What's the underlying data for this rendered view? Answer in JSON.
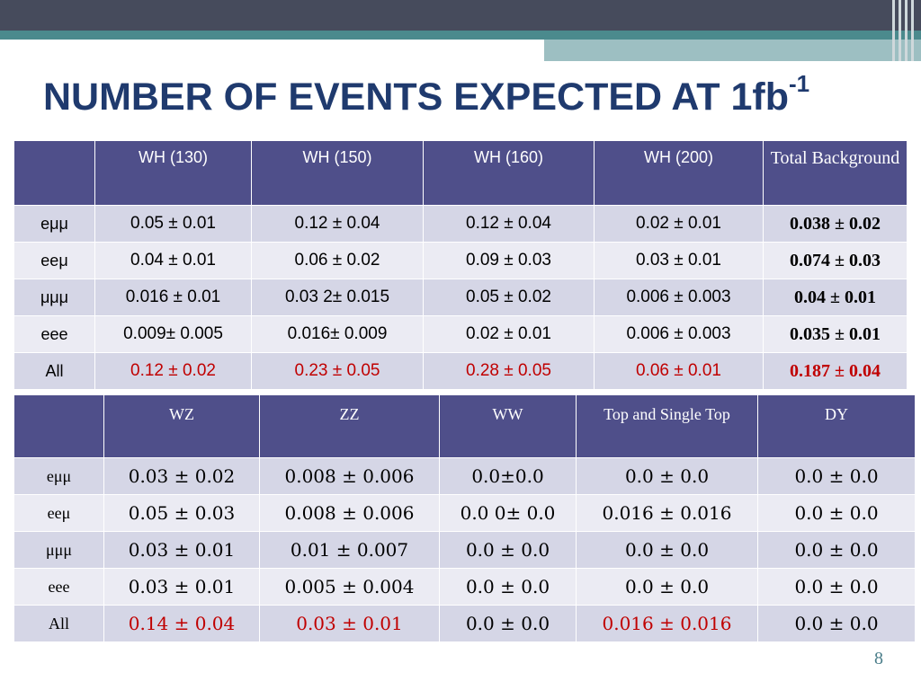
{
  "slide": {
    "title": "NUMBER OF EVENTS EXPECTED AT 1fb",
    "title_superscript": "-1",
    "page_number": "8"
  },
  "table_signal": {
    "headers": [
      "",
      "WH (130)",
      "WH (150)",
      "WH (160)",
      "WH (200)",
      "Total Background"
    ],
    "rows": [
      {
        "label": "eμμ",
        "cells": [
          "0.05 ± 0.01",
          "0.12 ± 0.04",
          "0.12 ± 0.04",
          "0.02 ± 0.01",
          "0.038 ± 0.02"
        ]
      },
      {
        "label": "eeμ",
        "cells": [
          "0.04 ± 0.01",
          "0.06 ± 0.02",
          "0.09 ± 0.03",
          "0.03 ± 0.01",
          "0.074 ± 0.03"
        ]
      },
      {
        "label": "μμμ",
        "cells": [
          "0.016 ± 0.01",
          "0.03 2±  0.015",
          "0.05 ± 0.02",
          "0.006 ± 0.003",
          "0.04 ± 0.01"
        ]
      },
      {
        "label": "eee",
        "cells": [
          "0.009± 0.005",
          "0.016± 0.009",
          "0.02 ± 0.01",
          "0.006 ± 0.003",
          "0.035 ± 0.01"
        ]
      },
      {
        "label": "All",
        "cells": [
          "0.12 ± 0.02",
          "0.23 ±  0.05",
          "0.28 ± 0.05",
          "0.06 ± 0.01",
          "0.187 ± 0.04"
        ]
      }
    ]
  },
  "table_background": {
    "headers": [
      "",
      "WZ",
      "ZZ",
      "WW",
      "Top and Single Top",
      "DY"
    ],
    "rows": [
      {
        "label": "eμμ",
        "cells": [
          "0.03 ± 0.02",
          "0.008 ± 0.006",
          "0.0±0.0",
          "0.0 ± 0.0",
          "0.0 ± 0.0"
        ]
      },
      {
        "label": "eeμ",
        "cells": [
          "0.05 ± 0.03",
          "0.008 ± 0.006",
          "0.0 0± 0.0",
          "0.016 ± 0.016",
          "0.0 ± 0.0"
        ]
      },
      {
        "label": "μμμ",
        "cells": [
          "0.03 ± 0.01",
          "0.01 ±  0.007",
          "0.0  ±  0.0",
          "0.0 ± 0.0",
          "0.0 ± 0.0"
        ]
      },
      {
        "label": "eee",
        "cells": [
          "0.03 ± 0.01",
          "0.005 ± 0.004",
          "0.0 ± 0.0",
          "0.0 ± 0.0",
          "0.0 ± 0.0"
        ]
      },
      {
        "label": "All",
        "cells": [
          "0.14 ± 0.04",
          "0.03 ± 0.01",
          "0.0 ±  0.0",
          "0.016 ± 0.016",
          "0.0 ± 0.0"
        ]
      }
    ]
  },
  "colors": {
    "header_fill": "#4f4f8a",
    "title": "#1f3a6e",
    "highlight_red": "#c00000"
  }
}
